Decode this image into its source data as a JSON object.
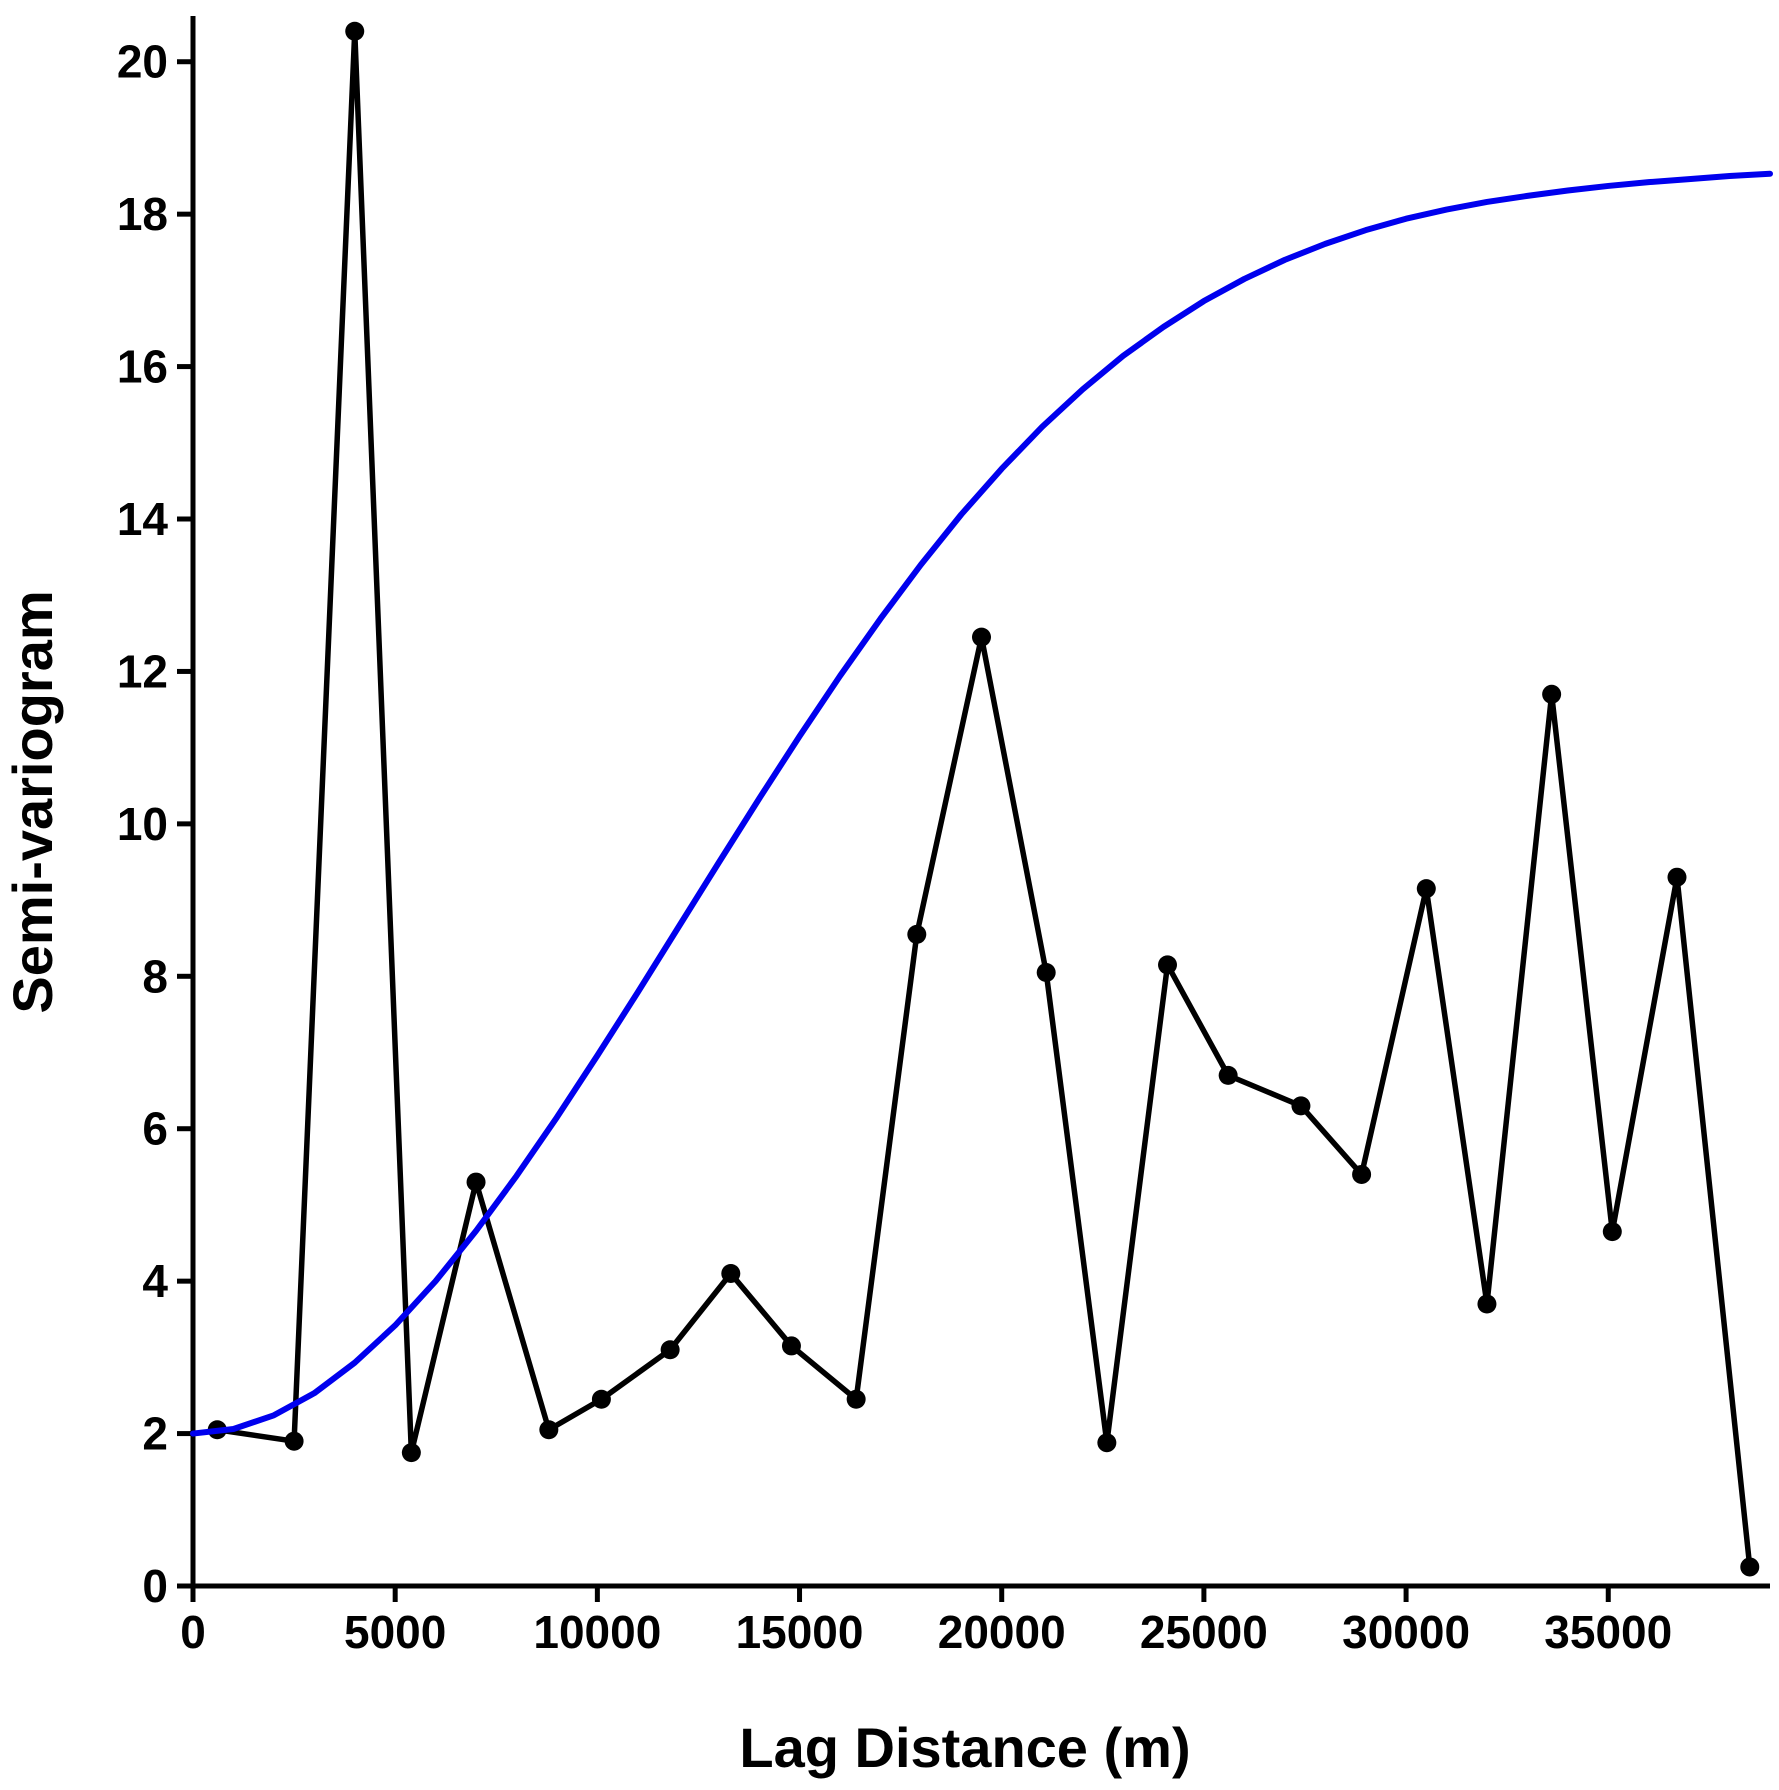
{
  "chart_data": {
    "type": "line",
    "title": "",
    "xlabel": "Lag Distance (m)",
    "ylabel": "Semi-variogram",
    "xlim": [
      0,
      39000
    ],
    "ylim": [
      0,
      20.6
    ],
    "xticks": [
      0,
      5000,
      10000,
      15000,
      20000,
      25000,
      30000,
      35000
    ],
    "yticks": [
      0,
      2,
      4,
      6,
      8,
      10,
      12,
      14,
      16,
      18,
      20
    ],
    "grid": false,
    "series": [
      {
        "kind": "empirical",
        "color": "#000000",
        "markers": true,
        "x": [
          600,
          2500,
          4000,
          5400,
          7000,
          8800,
          10100,
          11800,
          13300,
          14800,
          16400,
          17900,
          19500,
          21100,
          22600,
          24100,
          25600,
          27400,
          28900,
          30500,
          32000,
          33600,
          35100,
          36700,
          38500
        ],
        "y": [
          2.05,
          1.9,
          20.4,
          1.75,
          5.3,
          2.05,
          2.45,
          3.1,
          4.1,
          3.15,
          2.45,
          8.55,
          12.45,
          8.05,
          1.88,
          8.15,
          6.7,
          6.3,
          5.4,
          9.15,
          3.7,
          11.7,
          4.65,
          9.3,
          0.25
        ]
      },
      {
        "kind": "model",
        "color": "#0000ee",
        "markers": false,
        "x": [
          0,
          1000,
          2000,
          3000,
          4000,
          5000,
          6000,
          7000,
          8000,
          9000,
          10000,
          11000,
          12000,
          13000,
          14000,
          15000,
          16000,
          17000,
          18000,
          19000,
          20000,
          21000,
          22000,
          23000,
          24000,
          25000,
          26000,
          27000,
          28000,
          29000,
          30000,
          31000,
          32000,
          33000,
          34000,
          35000,
          36000,
          37000,
          38000,
          39000
        ],
        "y": [
          2.0,
          2.06,
          2.24,
          2.53,
          2.93,
          3.42,
          4.0,
          4.66,
          5.38,
          6.15,
          6.96,
          7.79,
          8.64,
          9.49,
          10.33,
          11.15,
          11.94,
          12.69,
          13.4,
          14.06,
          14.66,
          15.21,
          15.7,
          16.14,
          16.52,
          16.86,
          17.15,
          17.4,
          17.61,
          17.79,
          17.94,
          18.06,
          18.16,
          18.24,
          18.31,
          18.37,
          18.42,
          18.46,
          18.5,
          18.53
        ]
      }
    ]
  }
}
